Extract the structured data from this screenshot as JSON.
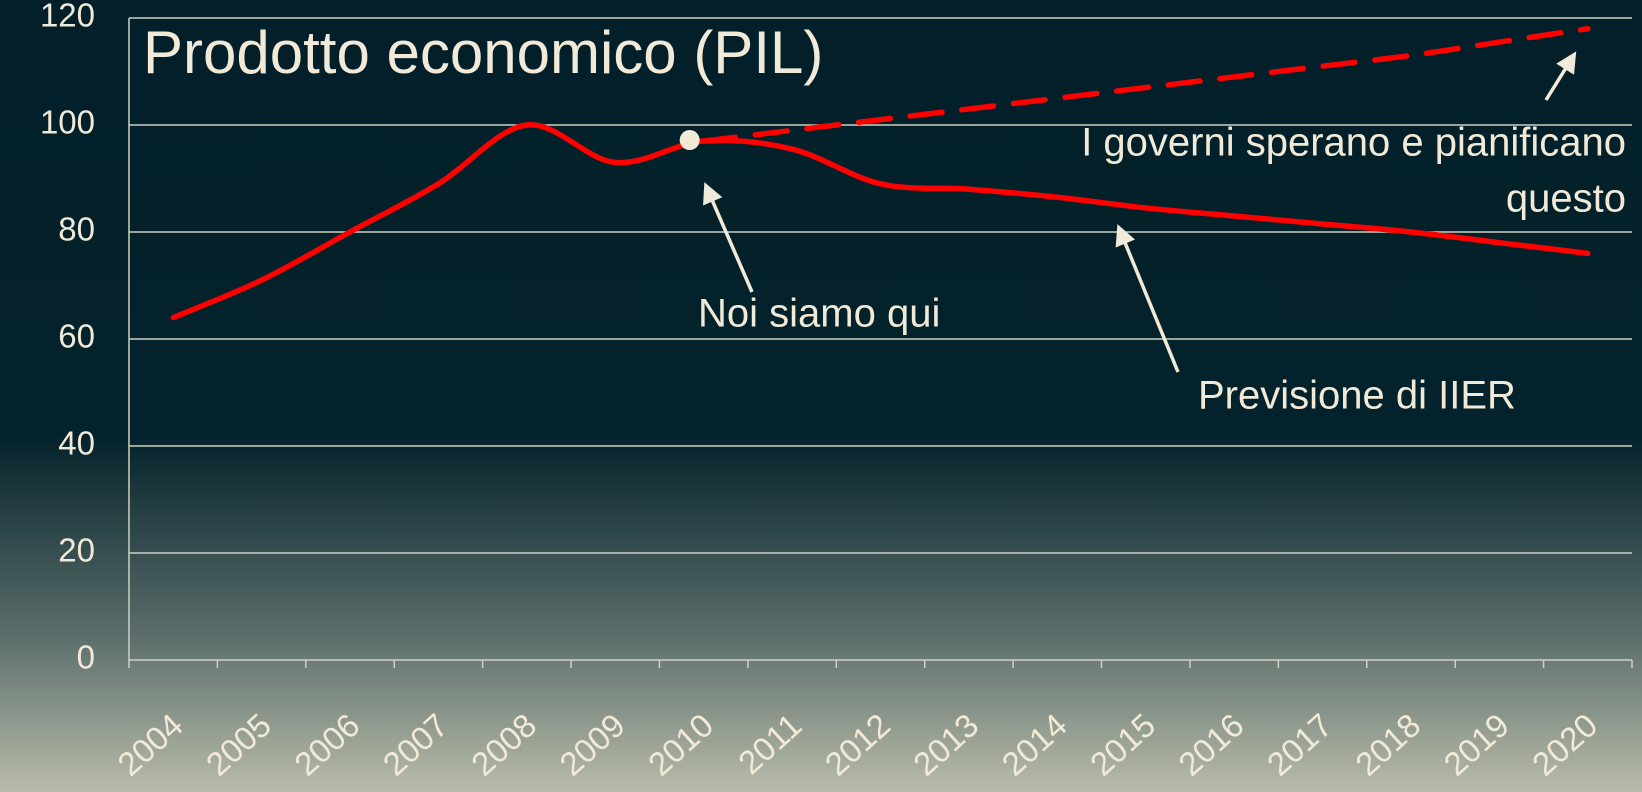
{
  "chart_data": {
    "type": "line",
    "title": "Prodotto economico (PIL)",
    "categories": [
      "2004",
      "2005",
      "2006",
      "2007",
      "2008",
      "2009",
      "2010",
      "2011",
      "2012",
      "2013",
      "2014",
      "2015",
      "2016",
      "2017",
      "2018",
      "2019",
      "2020"
    ],
    "series": [
      {
        "color": "#ff0000",
        "dashed": false,
        "values": [
          64,
          71,
          80,
          89,
          100,
          93,
          97,
          95.5,
          89,
          88,
          86.5,
          84.5,
          83,
          81.5,
          80,
          78,
          76
        ]
      },
      {
        "color": "#ff0000",
        "dashed": true,
        "values": [
          null,
          null,
          null,
          null,
          null,
          null,
          97,
          99,
          101,
          103,
          105,
          107,
          109,
          111,
          113,
          115.5,
          118
        ]
      }
    ],
    "ylim": [
      0,
      120
    ],
    "yticks": [
      0,
      20,
      40,
      60,
      80,
      100,
      120
    ],
    "grid": true,
    "annotations": [
      {
        "lines": [
          "Noi siamo qui"
        ]
      },
      {
        "lines": [
          "I governi sperano e pianificano",
          "questo"
        ]
      },
      {
        "lines": [
          "Previsione di IIER"
        ]
      }
    ]
  }
}
